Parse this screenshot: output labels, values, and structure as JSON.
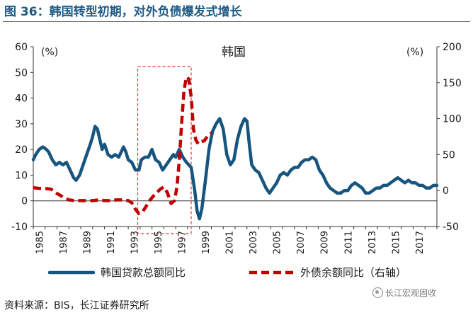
{
  "figure_title": "图 36：韩国转型初期，对外负债爆发式增长",
  "source": "资料来源：BIS，长江证券研究所",
  "watermark": "长江宏观固收",
  "colors": {
    "loan": "#17557f",
    "debt": "#c00000",
    "title": "#1b5a86",
    "axis": "#333333"
  },
  "chart_data": {
    "type": "line",
    "title": "韩国",
    "left_unit": "(%)",
    "right_unit": "(%)",
    "ylim_left": [
      -10,
      60
    ],
    "ylim_right": [
      -50,
      200
    ],
    "yticks_left": [
      -10,
      0,
      10,
      20,
      30,
      40,
      50,
      60
    ],
    "yticks_right": [
      -50,
      0,
      50,
      100,
      150,
      200
    ],
    "xlim": [
      1985,
      2019
    ],
    "x_tick_labels": [
      "1985",
      "1987",
      "1989",
      "1991",
      "1993",
      "1995",
      "1997",
      "1999",
      "2001",
      "2003",
      "2005",
      "2007",
      "2009",
      "2011",
      "2013",
      "2015",
      "2017"
    ],
    "highlight_range": [
      1993.8,
      1998.3
    ],
    "series": [
      {
        "name": "韩国贷款总额同比",
        "axis": "left",
        "style": "solid",
        "points": [
          [
            1985.0,
            16
          ],
          [
            1985.2,
            18
          ],
          [
            1985.5,
            20
          ],
          [
            1985.8,
            21
          ],
          [
            1986.1,
            20
          ],
          [
            1986.3,
            19
          ],
          [
            1986.6,
            16
          ],
          [
            1986.9,
            14
          ],
          [
            1987.2,
            15
          ],
          [
            1987.5,
            14
          ],
          [
            1987.8,
            15
          ],
          [
            1988.1,
            12
          ],
          [
            1988.4,
            9
          ],
          [
            1988.6,
            8
          ],
          [
            1988.9,
            10
          ],
          [
            1989.2,
            14
          ],
          [
            1989.5,
            18
          ],
          [
            1989.8,
            22
          ],
          [
            1990.0,
            25
          ],
          [
            1990.2,
            29
          ],
          [
            1990.4,
            28
          ],
          [
            1990.6,
            24
          ],
          [
            1990.8,
            20
          ],
          [
            1991.0,
            22
          ],
          [
            1991.3,
            18
          ],
          [
            1991.6,
            17
          ],
          [
            1991.9,
            18
          ],
          [
            1992.2,
            17
          ],
          [
            1992.4,
            19
          ],
          [
            1992.6,
            21
          ],
          [
            1992.8,
            19
          ],
          [
            1993.0,
            16
          ],
          [
            1993.3,
            15
          ],
          [
            1993.6,
            12
          ],
          [
            1993.9,
            12
          ],
          [
            1994.1,
            16
          ],
          [
            1994.4,
            17
          ],
          [
            1994.7,
            17
          ],
          [
            1995.0,
            20
          ],
          [
            1995.3,
            16
          ],
          [
            1995.6,
            15
          ],
          [
            1995.9,
            12
          ],
          [
            1996.2,
            14
          ],
          [
            1996.5,
            16
          ],
          [
            1996.8,
            18
          ],
          [
            1997.0,
            17
          ],
          [
            1997.3,
            20
          ],
          [
            1997.6,
            17
          ],
          [
            1997.9,
            15
          ],
          [
            1998.1,
            14
          ],
          [
            1998.3,
            13
          ],
          [
            1998.6,
            4
          ],
          [
            1998.8,
            -4
          ],
          [
            1999.0,
            -7
          ],
          [
            1999.2,
            -3
          ],
          [
            1999.5,
            8
          ],
          [
            1999.8,
            20
          ],
          [
            2000.1,
            27
          ],
          [
            2000.4,
            30
          ],
          [
            2000.7,
            32
          ],
          [
            2001.0,
            28
          ],
          [
            2001.3,
            18
          ],
          [
            2001.6,
            14
          ],
          [
            2001.9,
            16
          ],
          [
            2002.2,
            24
          ],
          [
            2002.5,
            29
          ],
          [
            2002.8,
            32
          ],
          [
            2003.0,
            31
          ],
          [
            2003.2,
            22
          ],
          [
            2003.4,
            14
          ],
          [
            2003.7,
            12
          ],
          [
            2004.0,
            11
          ],
          [
            2004.3,
            8
          ],
          [
            2004.6,
            5
          ],
          [
            2004.9,
            3
          ],
          [
            2005.2,
            5
          ],
          [
            2005.5,
            7
          ],
          [
            2005.8,
            10
          ],
          [
            2006.1,
            11
          ],
          [
            2006.4,
            10
          ],
          [
            2006.7,
            12
          ],
          [
            2007.0,
            13
          ],
          [
            2007.3,
            13
          ],
          [
            2007.6,
            15
          ],
          [
            2007.9,
            16
          ],
          [
            2008.2,
            16
          ],
          [
            2008.5,
            17
          ],
          [
            2008.8,
            16
          ],
          [
            2009.1,
            12
          ],
          [
            2009.4,
            10
          ],
          [
            2009.7,
            7
          ],
          [
            2010.0,
            5
          ],
          [
            2010.3,
            4
          ],
          [
            2010.6,
            3
          ],
          [
            2010.9,
            3
          ],
          [
            2011.2,
            4
          ],
          [
            2011.5,
            4
          ],
          [
            2011.8,
            6
          ],
          [
            2012.1,
            7
          ],
          [
            2012.4,
            6
          ],
          [
            2012.7,
            5
          ],
          [
            2013.0,
            3
          ],
          [
            2013.3,
            3
          ],
          [
            2013.6,
            4
          ],
          [
            2013.9,
            5
          ],
          [
            2014.2,
            5
          ],
          [
            2014.5,
            6
          ],
          [
            2014.8,
            6
          ],
          [
            2015.1,
            7
          ],
          [
            2015.4,
            8
          ],
          [
            2015.7,
            9
          ],
          [
            2016.0,
            8
          ],
          [
            2016.3,
            7
          ],
          [
            2016.6,
            8
          ],
          [
            2016.9,
            7
          ],
          [
            2017.2,
            7
          ],
          [
            2017.5,
            6
          ],
          [
            2017.8,
            6
          ],
          [
            2018.1,
            5
          ],
          [
            2018.4,
            5
          ],
          [
            2018.7,
            6
          ],
          [
            2019.0,
            6
          ]
        ]
      },
      {
        "name": "外债余额同比（右轴）",
        "axis": "right",
        "style": "dashed",
        "points": [
          [
            1985.0,
            4
          ],
          [
            1985.5,
            3
          ],
          [
            1986.0,
            3
          ],
          [
            1986.5,
            2
          ],
          [
            1987.0,
            -4
          ],
          [
            1987.5,
            -9
          ],
          [
            1988.0,
            -13
          ],
          [
            1988.5,
            -14
          ],
          [
            1989.0,
            -14
          ],
          [
            1989.5,
            -14
          ],
          [
            1990.0,
            -14
          ],
          [
            1990.5,
            -13
          ],
          [
            1991.0,
            -14
          ],
          [
            1991.5,
            -14
          ],
          [
            1992.0,
            -13
          ],
          [
            1992.5,
            -13
          ],
          [
            1993.0,
            -14
          ],
          [
            1993.3,
            -17
          ],
          [
            1993.6,
            -26
          ],
          [
            1993.9,
            -32
          ],
          [
            1994.2,
            -30
          ],
          [
            1994.5,
            -22
          ],
          [
            1994.8,
            -14
          ],
          [
            1995.1,
            -8
          ],
          [
            1995.4,
            -3
          ],
          [
            1995.7,
            2
          ],
          [
            1996.0,
            5
          ],
          [
            1996.3,
            -3
          ],
          [
            1996.6,
            -18
          ],
          [
            1996.9,
            -14
          ],
          [
            1997.1,
            5
          ],
          [
            1997.3,
            42
          ],
          [
            1997.5,
            95
          ],
          [
            1997.7,
            140
          ],
          [
            1997.9,
            158
          ],
          [
            1998.1,
            155
          ],
          [
            1998.3,
            130
          ],
          [
            1998.5,
            85
          ],
          [
            1998.7,
            70
          ],
          [
            1998.9,
            65
          ],
          [
            1999.1,
            68
          ],
          [
            1999.4,
            69
          ],
          [
            1999.7,
            76
          ],
          [
            2000.0,
            80
          ]
        ]
      }
    ]
  }
}
